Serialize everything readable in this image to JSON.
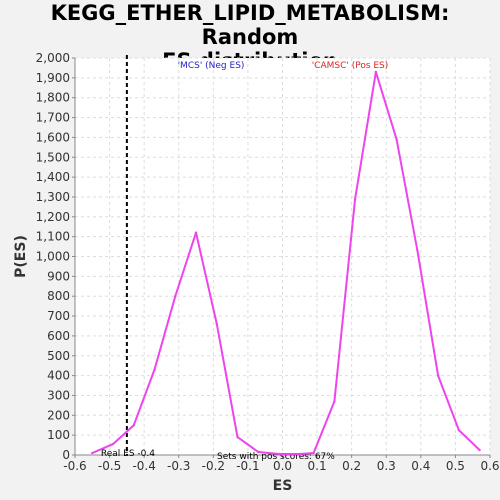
{
  "chart_data": {
    "type": "line",
    "title": "KEGG_ETHER_LIPID_METABOLISM: Random ES distribution",
    "title_lines": [
      "KEGG_ETHER_LIPID_METABOLISM: Random",
      "ES distribution"
    ],
    "xlabel": "ES",
    "ylabel": "P(ES)",
    "xlim": [
      -0.6,
      0.6
    ],
    "ylim": [
      0,
      2000
    ],
    "x_ticks": [
      "-0.6",
      "-0.5",
      "-0.4",
      "-0.3",
      "-0.2",
      "-0.1",
      "0.0",
      "0.1",
      "0.2",
      "0.3",
      "0.4",
      "0.5",
      "0.6"
    ],
    "x_tick_values": [
      -0.6,
      -0.5,
      -0.4,
      -0.3,
      -0.2,
      -0.1,
      0.0,
      0.1,
      0.2,
      0.3,
      0.4,
      0.5,
      0.6
    ],
    "y_ticks": [
      "0",
      "100",
      "200",
      "300",
      "400",
      "500",
      "600",
      "700",
      "800",
      "900",
      "1,000",
      "1,100",
      "1,200",
      "1,300",
      "1,400",
      "1,500",
      "1,600",
      "1,700",
      "1,800",
      "1,900",
      "2,000"
    ],
    "y_tick_values": [
      0,
      100,
      200,
      300,
      400,
      500,
      600,
      700,
      800,
      900,
      1000,
      1100,
      1200,
      1300,
      1400,
      1500,
      1600,
      1700,
      1800,
      1900,
      2000
    ],
    "grid": true,
    "series": [
      {
        "color": "#ee44ee",
        "x": [
          -0.55,
          -0.49,
          -0.43,
          -0.37,
          -0.31,
          -0.25,
          -0.19,
          -0.13,
          -0.07,
          -0.01,
          0.05,
          0.09,
          0.15,
          0.21,
          0.27,
          0.33,
          0.39,
          0.45,
          0.51,
          0.57
        ],
        "y": [
          10,
          55,
          150,
          430,
          800,
          1120,
          660,
          90,
          15,
          5,
          5,
          10,
          270,
          1290,
          1930,
          1590,
          1030,
          400,
          125,
          25
        ]
      }
    ],
    "legend": [
      {
        "label": "'MCS' (Neg ES)",
        "color": "#2222cc"
      },
      {
        "label": "'CAMSC' (Pos ES)",
        "color": "#dd2222"
      }
    ],
    "real_es": {
      "value": -0.45,
      "label": "Real ES -0.4"
    },
    "annotation": "Sets with pos scores: 67%"
  }
}
